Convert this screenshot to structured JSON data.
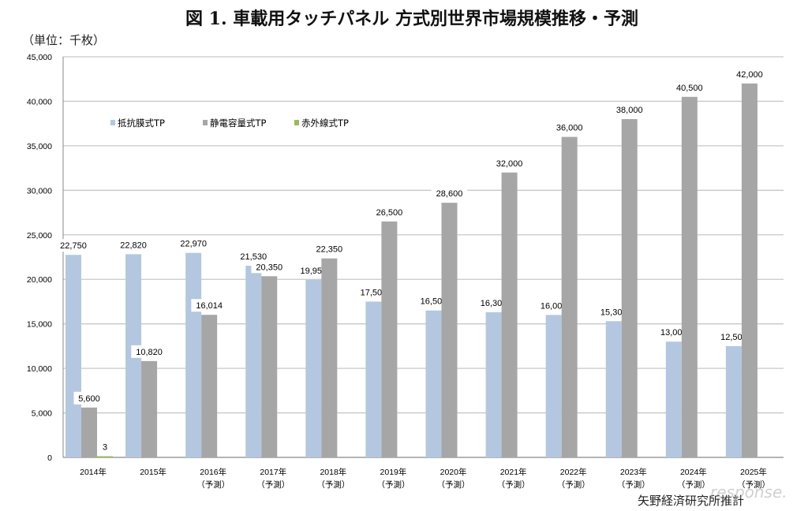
{
  "chart_data": {
    "type": "bar",
    "title": "図 1.  車載用タッチパネル  方式別世界市場規模推移・予測",
    "unit_label": "（単位：千枚）",
    "source": "矢野経済研究所推計",
    "watermark": "response.",
    "xlabel": "",
    "ylabel": "",
    "ylim": [
      0,
      45000
    ],
    "yticks": [
      "0",
      "5,000",
      "10,000",
      "15,000",
      "20,000",
      "25,000",
      "30,000",
      "35,000",
      "40,000",
      "45,000"
    ],
    "grid": true,
    "legend_position": "top-left",
    "categories": [
      {
        "year": "2014年",
        "note": ""
      },
      {
        "year": "2015年",
        "note": ""
      },
      {
        "year": "2016年",
        "note": "（予測）"
      },
      {
        "year": "2017年",
        "note": "（予測）"
      },
      {
        "year": "2018年",
        "note": "（予測）"
      },
      {
        "year": "2019年",
        "note": "（予測）"
      },
      {
        "year": "2020年",
        "note": "（予測）"
      },
      {
        "year": "2021年",
        "note": "（予測）"
      },
      {
        "year": "2022年",
        "note": "（予測）"
      },
      {
        "year": "2023年",
        "note": "（予測）"
      },
      {
        "year": "2024年",
        "note": "（予測）"
      },
      {
        "year": "2025年",
        "note": "（予測）"
      }
    ],
    "series": [
      {
        "name": "抵抗膜式TP",
        "color": "#b4c7e0",
        "values": [
          22750,
          22820,
          22970,
          21530,
          19950,
          17500,
          16500,
          16300,
          16000,
          15300,
          13000,
          12500
        ],
        "labels": [
          "22,750",
          "22,820",
          "22,970",
          "21,530",
          "19,950",
          "17,500",
          "16,500",
          "16,300",
          "16,000",
          "15,300",
          "13,000",
          "12,500"
        ]
      },
      {
        "name": "静電容量式TP",
        "color": "#a6a6a6",
        "values": [
          5600,
          10820,
          16014,
          20350,
          22350,
          26500,
          28600,
          32000,
          36000,
          38000,
          40500,
          42000
        ],
        "labels": [
          "5,600",
          "10,820",
          "16,014",
          "20,350",
          "22,350",
          "26,500",
          "28,600",
          "32,000",
          "36,000",
          "38,000",
          "40,500",
          "42,000"
        ]
      },
      {
        "name": "赤外線式TP",
        "color": "#9bbb59",
        "values": [
          3,
          null,
          null,
          null,
          null,
          null,
          null,
          null,
          null,
          null,
          null,
          null
        ],
        "labels": [
          "3",
          "",
          "",
          "",
          "",
          "",
          "",
          "",
          "",
          "",
          "",
          ""
        ]
      }
    ]
  }
}
